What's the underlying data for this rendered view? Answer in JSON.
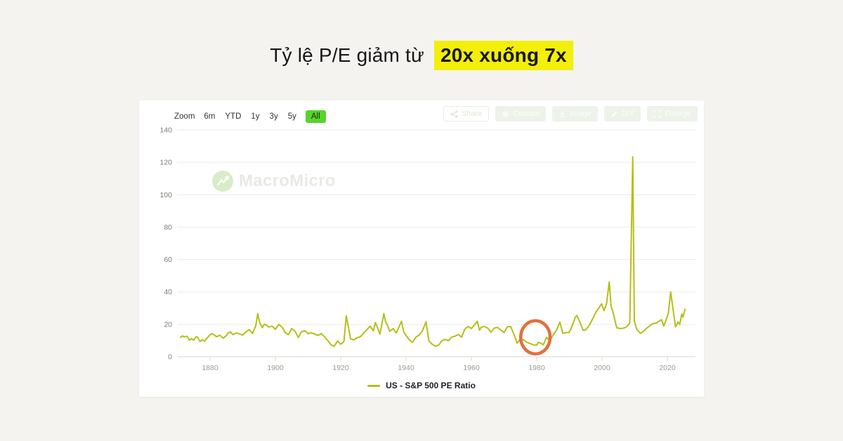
{
  "page": {
    "title": {
      "prefix": "Tỷ lệ P/E giảm từ",
      "highlight": "20x xuống 7x",
      "highlight_bg": "#f3ee0a"
    }
  },
  "range_selector": {
    "zoom_label": "Zoom",
    "options": [
      "6m",
      "YTD",
      "1y",
      "3y",
      "5y",
      "All"
    ],
    "selected": "All",
    "selected_bg": "#57d32c"
  },
  "toolbar": {
    "share": "Share",
    "custom": "Custom",
    "image": "Image",
    "diy": "DIY",
    "enlarge": "Enlarge"
  },
  "watermark": {
    "brand": "MacroMicro"
  },
  "legend": {
    "series_label": "US - S&P 500 PE Ratio"
  },
  "chart_data": {
    "type": "line",
    "title": "US - S&P 500 PE Ratio",
    "xlabel": "",
    "ylabel": "",
    "x_ticks": [
      1880,
      1900,
      1920,
      1940,
      1960,
      1980,
      2000,
      2020
    ],
    "y_ticks": [
      0,
      20,
      40,
      60,
      80,
      100,
      120,
      140
    ],
    "xlim": [
      1871,
      2026.5
    ],
    "ylim": [
      0,
      140
    ],
    "grid": "horizontal",
    "legend_position": "bottom-center",
    "style": {
      "grid_color": "#e9e9e6",
      "axis_color": "#d5d5cf",
      "x_label_color": "#9b9b91",
      "y_label_color": "#7c7c74"
    },
    "annotation": {
      "shape": "ellipse",
      "center_year": 1979.6,
      "center_value": 12,
      "radius_years": 4.5,
      "radius_value": 10.2,
      "color": "#e0713f",
      "meaning": "circled trough where P/E fell to ~7x (late 1970s - early 1980s)"
    },
    "series": [
      {
        "name": "US - S&P 500 PE Ratio",
        "color": "#b5bf17",
        "points": [
          [
            1871,
            12
          ],
          [
            1871.6,
            12.9
          ],
          [
            1872,
            12.2
          ],
          [
            1873,
            12.6
          ],
          [
            1873.7,
            10.2
          ],
          [
            1874.3,
            11.2
          ],
          [
            1875,
            10.2
          ],
          [
            1875.6,
            12.1
          ],
          [
            1876,
            12.4
          ],
          [
            1877,
            9.3
          ],
          [
            1877.6,
            10.6
          ],
          [
            1878.3,
            9.6
          ],
          [
            1879,
            11.2
          ],
          [
            1880,
            13.6
          ],
          [
            1880.6,
            14.3
          ],
          [
            1881.3,
            13.4
          ],
          [
            1882,
            12.3
          ],
          [
            1883,
            13.3
          ],
          [
            1884,
            11.4
          ],
          [
            1885,
            13.1
          ],
          [
            1885.6,
            14.9
          ],
          [
            1886.3,
            15.2
          ],
          [
            1887,
            13.6
          ],
          [
            1888,
            14.7
          ],
          [
            1889,
            14.1
          ],
          [
            1890,
            13.3
          ],
          [
            1891,
            15.4
          ],
          [
            1892,
            16.7
          ],
          [
            1893,
            14.3
          ],
          [
            1894,
            19.2
          ],
          [
            1894.6,
            26.6
          ],
          [
            1895.2,
            21.1
          ],
          [
            1896,
            17.9
          ],
          [
            1896.6,
            20.1
          ],
          [
            1897.3,
            19.4
          ],
          [
            1898,
            18.3
          ],
          [
            1899,
            18.9
          ],
          [
            1900,
            16.9
          ],
          [
            1901,
            19.9
          ],
          [
            1902,
            18.4
          ],
          [
            1903,
            14.9
          ],
          [
            1904,
            13.6
          ],
          [
            1905,
            17.4
          ],
          [
            1906,
            15.9
          ],
          [
            1907,
            11.9
          ],
          [
            1908,
            15.4
          ],
          [
            1909,
            16.1
          ],
          [
            1910,
            14.3
          ],
          [
            1911,
            14.7
          ],
          [
            1912,
            14.1
          ],
          [
            1913,
            13.1
          ],
          [
            1914,
            14.3
          ],
          [
            1915,
            12.4
          ],
          [
            1916,
            10.1
          ],
          [
            1917,
            7.4
          ],
          [
            1918,
            6.4
          ],
          [
            1919,
            9.7
          ],
          [
            1920,
            7.7
          ],
          [
            1921,
            9.4
          ],
          [
            1921.7,
            25.2
          ],
          [
            1922.3,
            18.9
          ],
          [
            1923,
            11.1
          ],
          [
            1924,
            10.4
          ],
          [
            1925,
            11.7
          ],
          [
            1926,
            12.3
          ],
          [
            1927,
            14.7
          ],
          [
            1928,
            16.7
          ],
          [
            1929,
            18.9
          ],
          [
            1930,
            15.9
          ],
          [
            1930.6,
            21.1
          ],
          [
            1931.3,
            17.9
          ],
          [
            1932,
            13.9
          ],
          [
            1933.2,
            26.6
          ],
          [
            1933.7,
            21.9
          ],
          [
            1934.3,
            19.4
          ],
          [
            1935,
            15.7
          ],
          [
            1936,
            17.4
          ],
          [
            1937,
            14.7
          ],
          [
            1938.6,
            21.9
          ],
          [
            1939.3,
            15.4
          ],
          [
            1940,
            13.1
          ],
          [
            1941,
            10.4
          ],
          [
            1942,
            8.9
          ],
          [
            1943,
            12.1
          ],
          [
            1944,
            13.4
          ],
          [
            1945,
            15.9
          ],
          [
            1946.1,
            21.6
          ],
          [
            1947,
            9.7
          ],
          [
            1948,
            7.7
          ],
          [
            1949,
            6.4
          ],
          [
            1950,
            7.2
          ],
          [
            1951,
            9.9
          ],
          [
            1952,
            10.7
          ],
          [
            1953,
            9.9
          ],
          [
            1954,
            12.1
          ],
          [
            1955,
            12.7
          ],
          [
            1956,
            13.7
          ],
          [
            1957,
            12.1
          ],
          [
            1958,
            17.1
          ],
          [
            1959,
            18.7
          ],
          [
            1960,
            17.4
          ],
          [
            1961.8,
            21.9
          ],
          [
            1962.5,
            16.4
          ],
          [
            1963,
            18.2
          ],
          [
            1964,
            18.7
          ],
          [
            1965,
            17.7
          ],
          [
            1966,
            15.1
          ],
          [
            1967,
            17.7
          ],
          [
            1968,
            18.1
          ],
          [
            1969,
            16.4
          ],
          [
            1970,
            14.9
          ],
          [
            1971,
            18.4
          ],
          [
            1972,
            18.7
          ],
          [
            1973,
            13.9
          ],
          [
            1974,
            8.4
          ],
          [
            1975,
            10.9
          ],
          [
            1976,
            10.4
          ],
          [
            1977,
            8.9
          ],
          [
            1978,
            8.1
          ],
          [
            1979,
            7.3
          ],
          [
            1980,
            7.1
          ],
          [
            1980.5,
            8.9
          ],
          [
            1981.2,
            8.4
          ],
          [
            1982,
            7.4
          ],
          [
            1983,
            11.9
          ],
          [
            1984,
            9.9
          ],
          [
            1985,
            13.4
          ],
          [
            1986,
            16.1
          ],
          [
            1987.1,
            21.4
          ],
          [
            1988,
            14.4
          ],
          [
            1989,
            14.9
          ],
          [
            1990,
            15.1
          ],
          [
            1991,
            19.9
          ],
          [
            1991.8,
            24.4
          ],
          [
            1992.3,
            25.4
          ],
          [
            1993,
            22.4
          ],
          [
            1994.2,
            16.4
          ],
          [
            1995,
            16.6
          ],
          [
            1996,
            19.1
          ],
          [
            1997,
            22.9
          ],
          [
            1998,
            27.1
          ],
          [
            1999.9,
            32.7
          ],
          [
            2000.6,
            28.4
          ],
          [
            2001.4,
            32.9
          ],
          [
            2002.2,
            46.1
          ],
          [
            2002.8,
            30.9
          ],
          [
            2003.3,
            27.9
          ],
          [
            2004.5,
            17.9
          ],
          [
            2005.5,
            17.4
          ],
          [
            2006.5,
            17.6
          ],
          [
            2007.5,
            18.4
          ],
          [
            2008.5,
            20.9
          ],
          [
            2009.4,
            123.4
          ],
          [
            2009.9,
            21.9
          ],
          [
            2010.6,
            16.9
          ],
          [
            2011.8,
            14.4
          ],
          [
            2012.5,
            15.4
          ],
          [
            2013.5,
            17.4
          ],
          [
            2014.5,
            18.9
          ],
          [
            2015.5,
            20.4
          ],
          [
            2016.7,
            20.9
          ],
          [
            2018.2,
            22.9
          ],
          [
            2018.9,
            18.9
          ],
          [
            2019.8,
            23.9
          ],
          [
            2020.3,
            26.9
          ],
          [
            2021,
            39.9
          ],
          [
            2021.8,
            28.4
          ],
          [
            2022.5,
            18.4
          ],
          [
            2023.3,
            21.4
          ],
          [
            2023.8,
            19.9
          ],
          [
            2024.4,
            26.4
          ],
          [
            2024.8,
            24.4
          ],
          [
            2025.4,
            29.4
          ]
        ]
      }
    ]
  }
}
